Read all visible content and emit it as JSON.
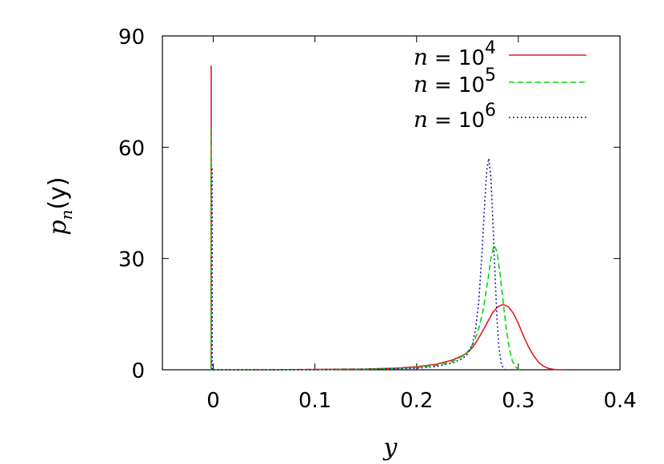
{
  "chart_data": {
    "type": "line",
    "xlabel": "y",
    "ylabel": {
      "main": "p",
      "subscript": "n",
      "argument": "(y)"
    },
    "xlim": [
      -0.05,
      0.4
    ],
    "ylim": [
      0,
      90
    ],
    "xticks": [
      {
        "value": 0,
        "label": "0"
      },
      {
        "value": 0.1,
        "label": "0.1"
      },
      {
        "value": 0.2,
        "label": "0.2"
      },
      {
        "value": 0.3,
        "label": "0.3"
      },
      {
        "value": 0.4,
        "label": "0.4"
      }
    ],
    "yticks": [
      {
        "value": 0,
        "label": "0"
      },
      {
        "value": 30,
        "label": "30"
      },
      {
        "value": 60,
        "label": "60"
      },
      {
        "value": 90,
        "label": "90"
      }
    ],
    "grid": false,
    "legend_position": "top-right",
    "series": [
      {
        "name": "n = 10^4",
        "legend_prefix": "n",
        "legend_eq": "= 10",
        "legend_exp": "4",
        "color": "#e41a1c",
        "dash": "solid",
        "spike": {
          "x": -0.002,
          "height": 82
        },
        "points": [
          [
            0.0,
            0
          ],
          [
            0.05,
            0.02
          ],
          [
            0.1,
            0.08
          ],
          [
            0.15,
            0.2
          ],
          [
            0.18,
            0.45
          ],
          [
            0.2,
            0.8
          ],
          [
            0.22,
            1.5
          ],
          [
            0.235,
            2.6
          ],
          [
            0.245,
            3.8
          ],
          [
            0.25,
            4.6
          ],
          [
            0.255,
            6.0
          ],
          [
            0.26,
            8.0
          ],
          [
            0.265,
            10.5
          ],
          [
            0.27,
            13.0
          ],
          [
            0.275,
            15.5
          ],
          [
            0.28,
            17.0
          ],
          [
            0.285,
            17.6
          ],
          [
            0.29,
            17.0
          ],
          [
            0.295,
            15.3
          ],
          [
            0.3,
            12.5
          ],
          [
            0.305,
            9.2
          ],
          [
            0.31,
            6.2
          ],
          [
            0.315,
            3.8
          ],
          [
            0.32,
            2.0
          ],
          [
            0.325,
            0.9
          ],
          [
            0.33,
            0.35
          ],
          [
            0.335,
            0.1
          ],
          [
            0.34,
            0.0
          ],
          [
            0.345,
            0.0
          ]
        ]
      },
      {
        "name": "n = 10^5",
        "legend_prefix": "n",
        "legend_eq": "= 10",
        "legend_exp": "5",
        "color": "#00dd00",
        "dash": "7,4",
        "spike": {
          "x": -0.002,
          "height": 65
        },
        "points": [
          [
            0.0,
            0
          ],
          [
            0.05,
            0.01
          ],
          [
            0.1,
            0.05
          ],
          [
            0.15,
            0.15
          ],
          [
            0.2,
            0.6
          ],
          [
            0.22,
            1.2
          ],
          [
            0.235,
            2.2
          ],
          [
            0.245,
            3.6
          ],
          [
            0.25,
            4.8
          ],
          [
            0.255,
            6.8
          ],
          [
            0.26,
            10.0
          ],
          [
            0.265,
            15.5
          ],
          [
            0.27,
            24.0
          ],
          [
            0.273,
            30.0
          ],
          [
            0.276,
            33.5
          ],
          [
            0.279,
            32.0
          ],
          [
            0.282,
            26.0
          ],
          [
            0.285,
            18.5
          ],
          [
            0.288,
            11.5
          ],
          [
            0.291,
            6.0
          ],
          [
            0.294,
            2.5
          ],
          [
            0.297,
            0.8
          ],
          [
            0.3,
            0.2
          ],
          [
            0.303,
            0.0
          ]
        ]
      },
      {
        "name": "n = 10^6",
        "legend_prefix": "n",
        "legend_eq": "= 10",
        "legend_exp": "6",
        "color": "#1a1aa8",
        "dash": "2,3",
        "spike": {
          "x": -0.001,
          "height": 55
        },
        "points": [
          [
            0.0,
            0
          ],
          [
            0.05,
            0.01
          ],
          [
            0.1,
            0.03
          ],
          [
            0.15,
            0.1
          ],
          [
            0.2,
            0.4
          ],
          [
            0.22,
            0.9
          ],
          [
            0.235,
            1.8
          ],
          [
            0.245,
            3.0
          ],
          [
            0.25,
            4.2
          ],
          [
            0.255,
            7.0
          ],
          [
            0.258,
            11.0
          ],
          [
            0.261,
            18.0
          ],
          [
            0.264,
            30.0
          ],
          [
            0.267,
            45.0
          ],
          [
            0.269,
            54.0
          ],
          [
            0.271,
            57.0
          ],
          [
            0.273,
            52.0
          ],
          [
            0.275,
            40.0
          ],
          [
            0.277,
            26.0
          ],
          [
            0.279,
            14.0
          ],
          [
            0.281,
            6.0
          ],
          [
            0.283,
            2.0
          ],
          [
            0.285,
            0.5
          ],
          [
            0.287,
            0.0
          ]
        ]
      }
    ]
  }
}
